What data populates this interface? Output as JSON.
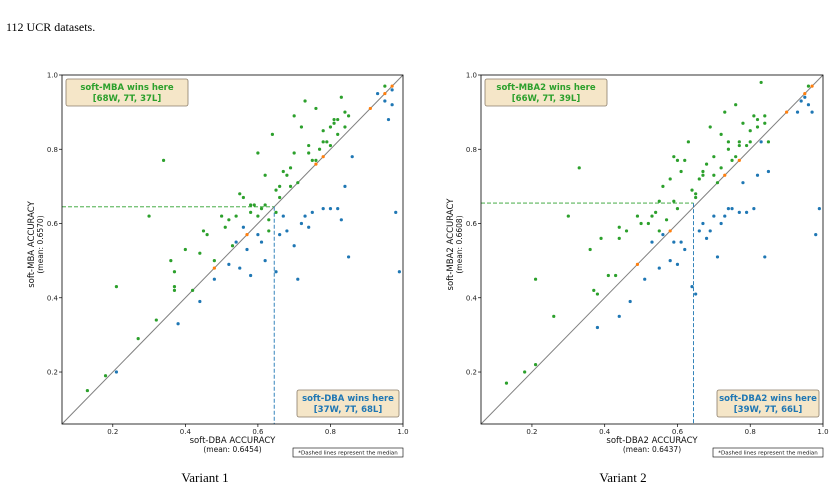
{
  "caption_top": "112 UCR datasets.",
  "colors": {
    "win_y": "#2ca02c",
    "win_x": "#1f77b4",
    "tie": "#ff7f0e",
    "diagonal": "#808080",
    "box_bg": "#f5e6c8",
    "box_edge": "#8b7d6b"
  },
  "chart_data": [
    {
      "type": "scatter",
      "caption": "Variant 1",
      "xlabel": "soft-DBA ACCURACY",
      "xlabel_sub": "(mean: 0.6454)",
      "ylabel": "soft-MBA ACCURACY",
      "ylabel_sub": "(mean: 0.6570)",
      "xlim": [
        0.06,
        1.0
      ],
      "ylim": [
        0.06,
        1.0
      ],
      "ticks": [
        "0.2",
        "0.4",
        "0.6",
        "0.8",
        "1.0"
      ],
      "median_x": 0.645,
      "median_y": 0.645,
      "box_y_win": {
        "line1": "soft-MBA wins here",
        "line2": "[68W, 7T, 37L]"
      },
      "box_x_win": {
        "line1": "soft-DBA wins here",
        "line2": "[37W, 7T, 68L]"
      },
      "note": "*Dashed lines represent the median",
      "series": [
        {
          "role": "y_wins",
          "points": [
            [
              0.13,
              0.15
            ],
            [
              0.18,
              0.19
            ],
            [
              0.21,
              0.43
            ],
            [
              0.27,
              0.29
            ],
            [
              0.3,
              0.62
            ],
            [
              0.32,
              0.34
            ],
            [
              0.34,
              0.77
            ],
            [
              0.36,
              0.5
            ],
            [
              0.37,
              0.43
            ],
            [
              0.37,
              0.42
            ],
            [
              0.37,
              0.47
            ],
            [
              0.4,
              0.53
            ],
            [
              0.42,
              0.42
            ],
            [
              0.44,
              0.52
            ],
            [
              0.45,
              0.58
            ],
            [
              0.46,
              0.57
            ],
            [
              0.48,
              0.5
            ],
            [
              0.5,
              0.62
            ],
            [
              0.51,
              0.59
            ],
            [
              0.53,
              0.54
            ],
            [
              0.54,
              0.62
            ],
            [
              0.55,
              0.68
            ],
            [
              0.56,
              0.67
            ],
            [
              0.58,
              0.63
            ],
            [
              0.59,
              0.65
            ],
            [
              0.6,
              0.79
            ],
            [
              0.61,
              0.64
            ],
            [
              0.62,
              0.73
            ],
            [
              0.63,
              0.61
            ],
            [
              0.64,
              0.84
            ],
            [
              0.65,
              0.69
            ],
            [
              0.66,
              0.67
            ],
            [
              0.67,
              0.74
            ],
            [
              0.68,
              0.73
            ],
            [
              0.69,
              0.75
            ],
            [
              0.69,
              0.7
            ],
            [
              0.7,
              0.89
            ],
            [
              0.71,
              0.71
            ],
            [
              0.72,
              0.86
            ],
            [
              0.73,
              0.93
            ],
            [
              0.74,
              0.79
            ],
            [
              0.75,
              0.77
            ],
            [
              0.76,
              0.91
            ],
            [
              0.77,
              0.8
            ],
            [
              0.78,
              0.85
            ],
            [
              0.79,
              0.82
            ],
            [
              0.8,
              0.86
            ],
            [
              0.81,
              0.87
            ],
            [
              0.82,
              0.88
            ],
            [
              0.83,
              0.94
            ],
            [
              0.84,
              0.86
            ],
            [
              0.95,
              0.97
            ],
            [
              0.6,
              0.62
            ],
            [
              0.62,
              0.65
            ],
            [
              0.66,
              0.7
            ],
            [
              0.7,
              0.79
            ],
            [
              0.74,
              0.81
            ],
            [
              0.78,
              0.82
            ],
            [
              0.81,
              0.88
            ],
            [
              0.82,
              0.84
            ],
            [
              0.84,
              0.9
            ],
            [
              0.85,
              0.89
            ],
            [
              0.63,
              0.58
            ],
            [
              0.52,
              0.61
            ],
            [
              0.58,
              0.65
            ],
            [
              0.76,
              0.77
            ],
            [
              0.8,
              0.81
            ],
            [
              0.65,
              0.63
            ]
          ]
        },
        {
          "role": "ties",
          "points": [
            [
              0.48,
              0.48
            ],
            [
              0.57,
              0.57
            ],
            [
              0.76,
              0.76
            ],
            [
              0.78,
              0.78
            ],
            [
              0.91,
              0.91
            ],
            [
              0.95,
              0.95
            ],
            [
              0.97,
              0.97
            ]
          ]
        },
        {
          "role": "x_wins",
          "points": [
            [
              0.21,
              0.2
            ],
            [
              0.38,
              0.33
            ],
            [
              0.44,
              0.39
            ],
            [
              0.48,
              0.45
            ],
            [
              0.52,
              0.49
            ],
            [
              0.54,
              0.55
            ],
            [
              0.55,
              0.48
            ],
            [
              0.56,
              0.59
            ],
            [
              0.57,
              0.53
            ],
            [
              0.58,
              0.46
            ],
            [
              0.6,
              0.57
            ],
            [
              0.61,
              0.55
            ],
            [
              0.62,
              0.5
            ],
            [
              0.65,
              0.47
            ],
            [
              0.66,
              0.57
            ],
            [
              0.67,
              0.62
            ],
            [
              0.68,
              0.58
            ],
            [
              0.7,
              0.54
            ],
            [
              0.71,
              0.45
            ],
            [
              0.72,
              0.6
            ],
            [
              0.73,
              0.62
            ],
            [
              0.74,
              0.59
            ],
            [
              0.75,
              0.63
            ],
            [
              0.78,
              0.64
            ],
            [
              0.8,
              0.64
            ],
            [
              0.82,
              0.64
            ],
            [
              0.83,
              0.61
            ],
            [
              0.84,
              0.7
            ],
            [
              0.85,
              0.51
            ],
            [
              0.86,
              0.78
            ],
            [
              0.93,
              0.95
            ],
            [
              0.95,
              0.93
            ],
            [
              0.96,
              0.88
            ],
            [
              0.97,
              0.96
            ],
            [
              0.98,
              0.63
            ],
            [
              0.99,
              0.47
            ],
            [
              0.97,
              0.92
            ]
          ]
        }
      ]
    },
    {
      "type": "scatter",
      "caption": "Variant 2",
      "xlabel": "soft-DBA2 ACCURACY",
      "xlabel_sub": "(mean: 0.6437)",
      "ylabel": "soft-MBA2 ACCURACY",
      "ylabel_sub": "(mean: 0.6608)",
      "xlim": [
        0.06,
        1.0
      ],
      "ylim": [
        0.06,
        1.0
      ],
      "ticks": [
        "0.2",
        "0.4",
        "0.6",
        "0.8",
        "1.0"
      ],
      "median_x": 0.644,
      "median_y": 0.655,
      "box_y_win": {
        "line1": "soft-MBA2 wins here",
        "line2": "[66W, 7T, 39L]"
      },
      "box_x_win": {
        "line1": "soft-DBA2 wins here",
        "line2": "[39W, 7T, 66L]"
      },
      "note": "*Dashed lines represent the median",
      "series": [
        {
          "role": "y_wins",
          "points": [
            [
              0.13,
              0.17
            ],
            [
              0.18,
              0.2
            ],
            [
              0.21,
              0.45
            ],
            [
              0.21,
              0.22
            ],
            [
              0.26,
              0.35
            ],
            [
              0.3,
              0.62
            ],
            [
              0.33,
              0.75
            ],
            [
              0.36,
              0.53
            ],
            [
              0.37,
              0.42
            ],
            [
              0.38,
              0.41
            ],
            [
              0.39,
              0.56
            ],
            [
              0.41,
              0.46
            ],
            [
              0.43,
              0.46
            ],
            [
              0.44,
              0.56
            ],
            [
              0.44,
              0.59
            ],
            [
              0.46,
              0.58
            ],
            [
              0.49,
              0.62
            ],
            [
              0.5,
              0.6
            ],
            [
              0.52,
              0.6
            ],
            [
              0.53,
              0.62
            ],
            [
              0.54,
              0.63
            ],
            [
              0.55,
              0.66
            ],
            [
              0.56,
              0.7
            ],
            [
              0.57,
              0.61
            ],
            [
              0.58,
              0.72
            ],
            [
              0.59,
              0.78
            ],
            [
              0.6,
              0.77
            ],
            [
              0.61,
              0.74
            ],
            [
              0.62,
              0.77
            ],
            [
              0.63,
              0.82
            ],
            [
              0.65,
              0.68
            ],
            [
              0.66,
              0.72
            ],
            [
              0.67,
              0.74
            ],
            [
              0.68,
              0.76
            ],
            [
              0.69,
              0.86
            ],
            [
              0.7,
              0.73
            ],
            [
              0.71,
              0.71
            ],
            [
              0.72,
              0.84
            ],
            [
              0.73,
              0.9
            ],
            [
              0.74,
              0.8
            ],
            [
              0.75,
              0.77
            ],
            [
              0.76,
              0.92
            ],
            [
              0.77,
              0.81
            ],
            [
              0.78,
              0.87
            ],
            [
              0.79,
              0.81
            ],
            [
              0.8,
              0.82
            ],
            [
              0.81,
              0.89
            ],
            [
              0.82,
              0.88
            ],
            [
              0.83,
              0.98
            ],
            [
              0.84,
              0.87
            ],
            [
              0.96,
              0.97
            ],
            [
              0.6,
              0.64
            ],
            [
              0.64,
              0.69
            ],
            [
              0.67,
              0.73
            ],
            [
              0.7,
              0.78
            ],
            [
              0.74,
              0.82
            ],
            [
              0.77,
              0.82
            ],
            [
              0.8,
              0.85
            ],
            [
              0.82,
              0.86
            ],
            [
              0.84,
              0.89
            ],
            [
              0.85,
              0.82
            ],
            [
              0.55,
              0.58
            ],
            [
              0.59,
              0.66
            ],
            [
              0.65,
              0.67
            ],
            [
              0.72,
              0.75
            ],
            [
              0.76,
              0.78
            ]
          ]
        },
        {
          "role": "ties",
          "points": [
            [
              0.49,
              0.49
            ],
            [
              0.58,
              0.58
            ],
            [
              0.73,
              0.73
            ],
            [
              0.77,
              0.77
            ],
            [
              0.9,
              0.9
            ],
            [
              0.95,
              0.95
            ],
            [
              0.97,
              0.97
            ]
          ]
        },
        {
          "role": "x_wins",
          "points": [
            [
              0.38,
              0.32
            ],
            [
              0.44,
              0.35
            ],
            [
              0.47,
              0.39
            ],
            [
              0.51,
              0.45
            ],
            [
              0.53,
              0.55
            ],
            [
              0.55,
              0.48
            ],
            [
              0.56,
              0.57
            ],
            [
              0.58,
              0.5
            ],
            [
              0.59,
              0.55
            ],
            [
              0.6,
              0.49
            ],
            [
              0.61,
              0.55
            ],
            [
              0.62,
              0.53
            ],
            [
              0.64,
              0.43
            ],
            [
              0.65,
              0.41
            ],
            [
              0.66,
              0.58
            ],
            [
              0.67,
              0.6
            ],
            [
              0.68,
              0.56
            ],
            [
              0.7,
              0.62
            ],
            [
              0.71,
              0.51
            ],
            [
              0.72,
              0.6
            ],
            [
              0.73,
              0.62
            ],
            [
              0.74,
              0.64
            ],
            [
              0.75,
              0.64
            ],
            [
              0.77,
              0.63
            ],
            [
              0.79,
              0.63
            ],
            [
              0.81,
              0.64
            ],
            [
              0.82,
              0.73
            ],
            [
              0.83,
              0.82
            ],
            [
              0.84,
              0.51
            ],
            [
              0.85,
              0.74
            ],
            [
              0.93,
              0.9
            ],
            [
              0.95,
              0.94
            ],
            [
              0.96,
              0.92
            ],
            [
              0.97,
              0.9
            ],
            [
              0.98,
              0.57
            ],
            [
              0.99,
              0.64
            ],
            [
              0.94,
              0.93
            ],
            [
              0.78,
              0.71
            ],
            [
              0.69,
              0.58
            ]
          ]
        }
      ]
    }
  ]
}
